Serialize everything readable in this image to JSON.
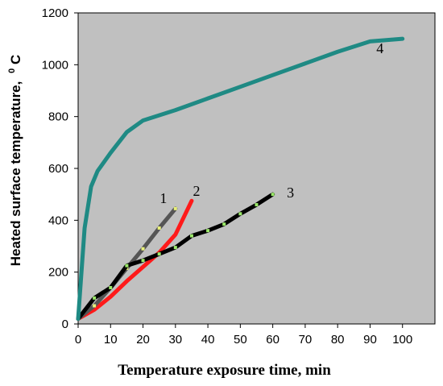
{
  "chart_data": {
    "type": "line",
    "title": "",
    "xlabel": "Temperature exposure time, min",
    "ylabel": "Heated surface temperature,",
    "ylabel_unit_sup": "0",
    "ylabel_unit": "C",
    "xlim": [
      0,
      110
    ],
    "ylim": [
      0,
      1200
    ],
    "x_ticks": [
      0,
      10,
      20,
      30,
      40,
      50,
      60,
      70,
      80,
      90,
      100
    ],
    "y_ticks": [
      0,
      200,
      400,
      600,
      800,
      1000,
      1200
    ],
    "grid": false,
    "plot_background": "#c0c0c0",
    "series": [
      {
        "name": "1",
        "color": "#555555",
        "marker_color": "#e8f07a",
        "x": [
          0,
          5,
          10,
          15,
          20,
          25,
          30
        ],
        "y": [
          20,
          70,
          140,
          215,
          290,
          370,
          445
        ]
      },
      {
        "name": "2",
        "color": "#ff1a1a",
        "x": [
          0,
          5,
          10,
          15,
          20,
          25,
          30,
          35
        ],
        "y": [
          20,
          55,
          105,
          165,
          220,
          275,
          345,
          475
        ]
      },
      {
        "name": "3",
        "color": "#000000",
        "marker_color": "#9be86a",
        "x": [
          0,
          5,
          10,
          15,
          20,
          25,
          30,
          35,
          40,
          45,
          50,
          55,
          60
        ],
        "y": [
          20,
          100,
          140,
          225,
          245,
          270,
          295,
          340,
          360,
          385,
          425,
          460,
          500
        ]
      },
      {
        "name": "4",
        "color": "#1f8a84",
        "x": [
          0,
          2,
          4,
          6,
          10,
          15,
          20,
          30,
          40,
          50,
          60,
          70,
          80,
          90,
          100
        ],
        "y": [
          20,
          370,
          530,
          590,
          660,
          740,
          785,
          825,
          870,
          915,
          960,
          1005,
          1050,
          1090,
          1100
        ]
      }
    ]
  }
}
